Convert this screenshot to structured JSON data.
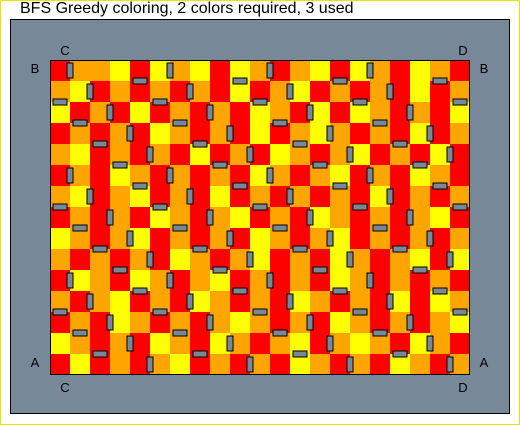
{
  "title": "BFS Greedy coloring, 2 colors required, 3 used",
  "corner_labels": {
    "top_left": "C",
    "top_right": "D",
    "upper_left": "B",
    "upper_right": "B",
    "lower_left": "A",
    "lower_right": "A",
    "bottom_left": "C",
    "bottom_right": "D"
  },
  "colors": {
    "background": "#778899",
    "red": "#ff0000",
    "orange": "#ffa500",
    "yellow": "#ffff00",
    "wall": "#000000",
    "frame_border": "#e6e600"
  },
  "board": {
    "columns": 21,
    "rows": 15,
    "cells": [
      "ROOYRYOYRYOROYRYORYOR",
      "OYRORORORYROYRORORYRO",
      "YRORYRORORYORYRYORORY",
      "RORORYORORYROYORORYRO",
      "OYRORORYRORYOROYRORYR",
      "RORYORORORYOROYRORYOR",
      "OYROYRORYRORORORYRORO",
      "RORORYOROYRORYOROROYR",
      "YOROYRORORYOROYRORORO",
      "ORORORYOROYRORYOROYRY",
      "RYORYOROYRORORYOROROR",
      "OROYRORYORORYORORYRYO",
      "RORYOROROYORORYOROROY",
      "YORORYORYOROYROYORYOR",
      "RYROROYRORORYORORYORO"
    ]
  }
}
